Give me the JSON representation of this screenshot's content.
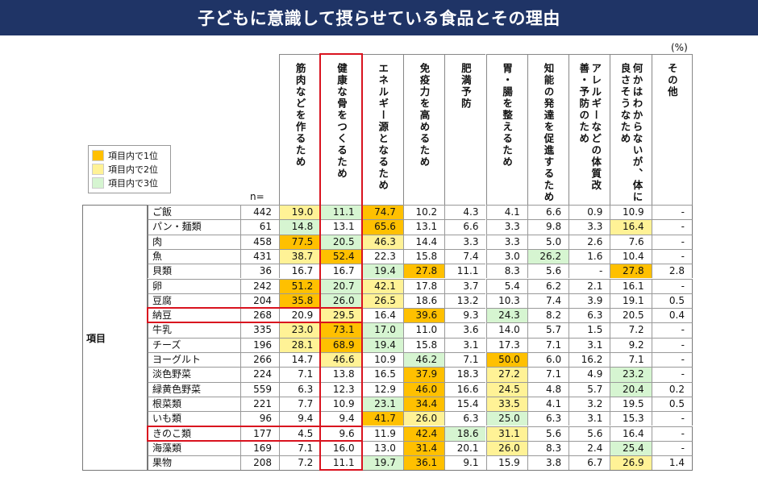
{
  "title": "子どもに意識して摂らせている食品とその理由",
  "unit_label": "(%)",
  "n_label": "n=",
  "category_label": "項目",
  "legend": [
    {
      "label": "項目内で1位",
      "color": "#ffc000"
    },
    {
      "label": "項目内で2位",
      "color": "#fff296"
    },
    {
      "label": "項目内で3位",
      "color": "#d6f5d1"
    }
  ],
  "colors": {
    "header": "#1f3466",
    "highlight_border": "#d9131f"
  },
  "columns": [
    "筋肉などを作るため",
    "健康な骨をつくるため",
    "エネルギー源となるため",
    "免疫力を高めるため",
    "肥満予防",
    "胃・腸を整えるため",
    "知能の発達を促進するため",
    "アレルギーなどの体質改善・予防のため",
    "何かはわからないが、体に良さそうなため",
    "その他"
  ],
  "rows": [
    {
      "label": "ご飯",
      "n": "442",
      "values": [
        "19.0",
        "11.1",
        "74.7",
        "10.2",
        "4.3",
        "4.1",
        "6.6",
        "0.9",
        "10.9",
        "-"
      ],
      "ranks": [
        2,
        3,
        1,
        0,
        0,
        0,
        0,
        0,
        0,
        0
      ]
    },
    {
      "label": "パン・麺類",
      "n": "61",
      "values": [
        "14.8",
        "13.1",
        "65.6",
        "13.1",
        "6.6",
        "3.3",
        "9.8",
        "3.3",
        "16.4",
        "-"
      ],
      "ranks": [
        3,
        0,
        1,
        0,
        0,
        0,
        0,
        0,
        2,
        0
      ]
    },
    {
      "label": "肉",
      "n": "458",
      "values": [
        "77.5",
        "20.5",
        "46.3",
        "14.4",
        "3.3",
        "3.3",
        "5.0",
        "2.6",
        "7.6",
        "-"
      ],
      "ranks": [
        1,
        3,
        2,
        0,
        0,
        0,
        0,
        0,
        0,
        0
      ]
    },
    {
      "label": "魚",
      "n": "431",
      "values": [
        "38.7",
        "52.4",
        "22.3",
        "15.8",
        "7.4",
        "3.0",
        "26.2",
        "1.6",
        "10.4",
        "-"
      ],
      "ranks": [
        2,
        1,
        0,
        0,
        0,
        0,
        3,
        0,
        0,
        0
      ]
    },
    {
      "label": "貝類",
      "n": "36",
      "values": [
        "16.7",
        "16.7",
        "19.4",
        "27.8",
        "11.1",
        "8.3",
        "5.6",
        "-",
        "27.8",
        "2.8"
      ],
      "ranks": [
        0,
        0,
        3,
        1,
        0,
        0,
        0,
        0,
        1,
        0
      ]
    },
    {
      "label": "卵",
      "n": "242",
      "values": [
        "51.2",
        "20.7",
        "42.1",
        "17.8",
        "3.7",
        "5.4",
        "6.2",
        "2.1",
        "16.1",
        "-"
      ],
      "ranks": [
        1,
        3,
        2,
        0,
        0,
        0,
        0,
        0,
        0,
        0
      ]
    },
    {
      "label": "豆腐",
      "n": "204",
      "values": [
        "35.8",
        "26.0",
        "26.5",
        "18.6",
        "13.2",
        "10.3",
        "7.4",
        "3.9",
        "19.1",
        "0.5"
      ],
      "ranks": [
        1,
        3,
        2,
        0,
        0,
        0,
        0,
        0,
        0,
        0
      ]
    },
    {
      "label": "納豆",
      "n": "268",
      "values": [
        "20.9",
        "29.5",
        "16.4",
        "39.6",
        "9.3",
        "24.3",
        "8.2",
        "6.3",
        "20.5",
        "0.4"
      ],
      "ranks": [
        0,
        2,
        0,
        1,
        0,
        3,
        0,
        0,
        0,
        0
      ]
    },
    {
      "label": "牛乳",
      "n": "335",
      "values": [
        "23.0",
        "73.1",
        "17.0",
        "11.0",
        "3.6",
        "14.0",
        "5.7",
        "1.5",
        "7.2",
        "-"
      ],
      "ranks": [
        2,
        1,
        3,
        0,
        0,
        0,
        0,
        0,
        0,
        0
      ]
    },
    {
      "label": "チーズ",
      "n": "196",
      "values": [
        "28.1",
        "68.9",
        "19.4",
        "15.8",
        "3.1",
        "17.3",
        "7.1",
        "3.1",
        "9.2",
        "-"
      ],
      "ranks": [
        2,
        1,
        3,
        0,
        0,
        0,
        0,
        0,
        0,
        0
      ]
    },
    {
      "label": "ヨーグルト",
      "n": "266",
      "values": [
        "14.7",
        "46.6",
        "10.9",
        "46.2",
        "7.1",
        "50.0",
        "6.0",
        "16.2",
        "7.1",
        "-"
      ],
      "ranks": [
        0,
        2,
        0,
        3,
        0,
        1,
        0,
        0,
        0,
        0
      ]
    },
    {
      "label": "淡色野菜",
      "n": "224",
      "values": [
        "7.1",
        "13.8",
        "16.5",
        "37.9",
        "18.3",
        "27.2",
        "7.1",
        "4.9",
        "23.2",
        "-"
      ],
      "ranks": [
        0,
        0,
        0,
        1,
        0,
        2,
        0,
        0,
        3,
        0
      ]
    },
    {
      "label": "緑黄色野菜",
      "n": "559",
      "values": [
        "6.3",
        "12.3",
        "12.9",
        "46.0",
        "16.6",
        "24.5",
        "4.8",
        "5.7",
        "20.4",
        "0.2"
      ],
      "ranks": [
        0,
        0,
        0,
        1,
        0,
        2,
        0,
        0,
        3,
        0
      ]
    },
    {
      "label": "根菜類",
      "n": "221",
      "values": [
        "7.7",
        "10.9",
        "23.1",
        "34.4",
        "15.4",
        "33.5",
        "4.1",
        "3.2",
        "19.5",
        "0.5"
      ],
      "ranks": [
        0,
        0,
        3,
        1,
        0,
        2,
        0,
        0,
        0,
        0
      ]
    },
    {
      "label": "いも類",
      "n": "96",
      "values": [
        "9.4",
        "9.4",
        "41.7",
        "26.0",
        "6.3",
        "25.0",
        "6.3",
        "3.1",
        "15.3",
        "-"
      ],
      "ranks": [
        0,
        0,
        1,
        2,
        0,
        3,
        0,
        0,
        0,
        0
      ]
    },
    {
      "label": "きのこ類",
      "n": "177",
      "values": [
        "4.5",
        "9.6",
        "11.9",
        "42.4",
        "18.6",
        "31.1",
        "5.6",
        "5.6",
        "16.4",
        "-"
      ],
      "ranks": [
        0,
        0,
        0,
        1,
        3,
        2,
        0,
        0,
        0,
        0
      ]
    },
    {
      "label": "海藻類",
      "n": "169",
      "values": [
        "7.1",
        "16.0",
        "13.0",
        "31.4",
        "20.1",
        "26.0",
        "8.3",
        "2.4",
        "25.4",
        "-"
      ],
      "ranks": [
        0,
        0,
        0,
        1,
        0,
        2,
        0,
        0,
        3,
        0
      ]
    },
    {
      "label": "果物",
      "n": "208",
      "values": [
        "7.2",
        "11.1",
        "19.7",
        "36.1",
        "9.1",
        "15.9",
        "3.8",
        "6.7",
        "26.9",
        "1.4"
      ],
      "ranks": [
        0,
        0,
        3,
        1,
        0,
        0,
        0,
        0,
        2,
        0
      ]
    }
  ],
  "highlighted_rows": [
    "納豆",
    "きのこ類"
  ],
  "highlighted_column": "健康な骨をつくるため"
}
